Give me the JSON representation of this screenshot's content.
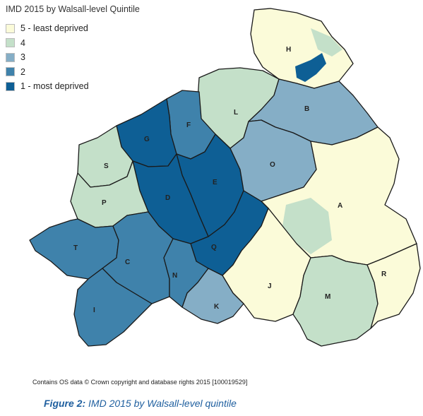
{
  "legend": {
    "title": "IMD 2015 by Walsall-level Quintile",
    "items": [
      {
        "label": "5 - least deprived",
        "color": "#fbfbd9"
      },
      {
        "label": "4",
        "color": "#c4e0c9"
      },
      {
        "label": "3",
        "color": "#85aec6"
      },
      {
        "label": "2",
        "color": "#3f82ab"
      },
      {
        "label": "1 - most deprived",
        "color": "#0e5f95"
      }
    ]
  },
  "wards": [
    "H",
    "L",
    "B",
    "F",
    "G",
    "S",
    "O",
    "D",
    "E",
    "P",
    "A",
    "T",
    "C",
    "Q",
    "R",
    "N",
    "J",
    "M",
    "K",
    "I"
  ],
  "credit": "Contains OS data © Crown copyright and database rights 2015 [100019529]",
  "caption": {
    "label": "Figure 2:",
    "text": " IMD 2015 by Walsall-level quintile"
  }
}
